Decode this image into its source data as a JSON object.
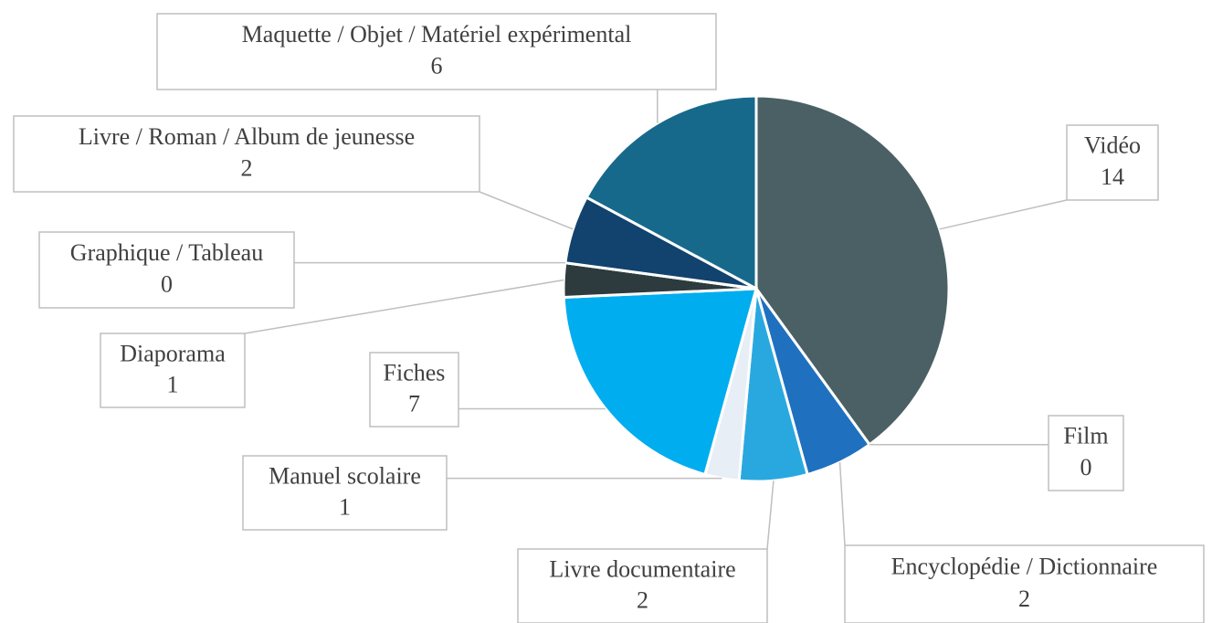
{
  "chart_data": {
    "type": "pie",
    "categories": [
      "Vidéo",
      "Film",
      "Encyclopédie / Dictionnaire",
      "Livre documentaire",
      "Manuel scolaire",
      "Fiches",
      "Diaporama",
      "Graphique / Tableau",
      "Livre / Roman / Album de jeunesse",
      "Maquette / Objet / Matériel expérimental"
    ],
    "values": [
      14,
      0,
      2,
      2,
      1,
      7,
      1,
      0,
      2,
      6
    ],
    "colors": [
      "#4a6065",
      "#3a7fc4",
      "#1f70bf",
      "#29a8e0",
      "#e8eef5",
      "#00adef",
      "#2e3b3e",
      "#5a6e72",
      "#12426e",
      "#17698c"
    ]
  }
}
